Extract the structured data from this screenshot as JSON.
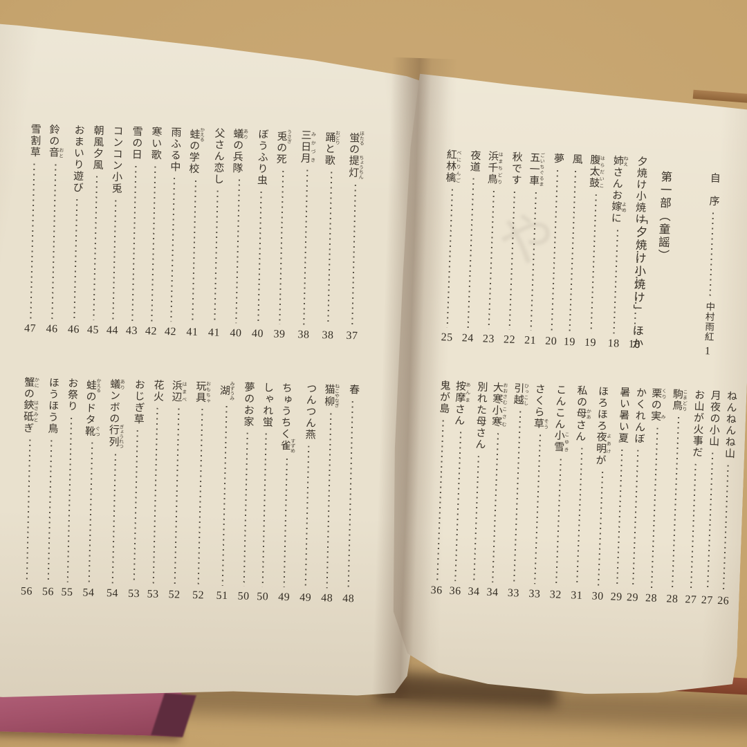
{
  "photo": {
    "subject": "open book spread showing table of contents",
    "colors": {
      "desk": "#c5a36d",
      "page_left": "#e9e1ce",
      "page_right": "#ece4d1",
      "ink": "#3b342b",
      "cover_pink": "#a4536b",
      "cover_rust": "#8a4732"
    }
  },
  "right_page": {
    "preface": {
      "title": "自　序",
      "author": "中村雨紅",
      "page": "1"
    },
    "part_heading": {
      "line1": "第一部（童謡）",
      "line2": "「夕焼け小焼け」　ほか"
    },
    "toc_upper": [
      {
        "s": [
          {
            "t": "夕焼け小焼け"
          }
        ],
        "p": "18"
      },
      {
        "s": [
          {
            "t": "姉",
            "r": "ねえ"
          },
          {
            "t": "さんお"
          },
          {
            "t": "嫁",
            "r": "よめ"
          },
          {
            "t": "に"
          }
        ],
        "p": "18"
      },
      {
        "s": [
          {
            "t": "腹太鼓",
            "r": "はらだいこ"
          }
        ],
        "p": "19"
      },
      {
        "s": [
          {
            "t": "風"
          }
        ],
        "p": "19"
      },
      {
        "s": [
          {
            "t": "夢"
          }
        ],
        "p": "20"
      },
      {
        "s": [
          {
            "t": "五一車",
            "r": "ごいちぐるま"
          }
        ],
        "p": "21"
      },
      {
        "s": [
          {
            "t": "秋です"
          }
        ],
        "p": "22"
      },
      {
        "s": [
          {
            "t": "浜千鳥",
            "r": "はまちどり"
          }
        ],
        "p": "23"
      },
      {
        "s": [
          {
            "t": "夜道"
          }
        ],
        "p": "24"
      },
      {
        "s": [
          {
            "t": "紅林檎",
            "r": "べにりんご"
          }
        ],
        "p": "25"
      }
    ],
    "toc_lower": [
      {
        "s": [
          {
            "t": "ねんねんね山"
          }
        ],
        "p": "26"
      },
      {
        "s": [
          {
            "t": "月夜の小山"
          }
        ],
        "p": "27"
      },
      {
        "s": [
          {
            "t": "お山が火事だ"
          }
        ],
        "p": "27"
      },
      {
        "s": [
          {
            "t": "駒鳥",
            "r": "こまどり"
          }
        ],
        "p": "28"
      },
      {
        "s": [
          {
            "t": "栗",
            "r": "くり"
          },
          {
            "t": "の"
          },
          {
            "t": "実",
            "r": "み"
          }
        ],
        "p": "28"
      },
      {
        "s": [
          {
            "t": "かくれんぼ"
          }
        ],
        "p": "29"
      },
      {
        "s": [
          {
            "t": "暑い暑い夏"
          }
        ],
        "p": "29"
      },
      {
        "s": [
          {
            "t": "ほろほろ"
          },
          {
            "t": "夜明",
            "r": "よあけ"
          },
          {
            "t": "が"
          }
        ],
        "p": "30"
      },
      {
        "s": [
          {
            "t": "私の"
          },
          {
            "t": "母",
            "r": "かあ"
          },
          {
            "t": "さん"
          }
        ],
        "p": "31"
      },
      {
        "s": [
          {
            "t": "こんこん"
          },
          {
            "t": "小雪",
            "r": "こゆき"
          }
        ],
        "p": "32"
      },
      {
        "s": [
          {
            "t": "さくら"
          },
          {
            "t": "草",
            "r": "そう"
          }
        ],
        "p": "33"
      },
      {
        "s": [
          {
            "t": "引越",
            "r": "ひっこし"
          }
        ],
        "p": "33"
      },
      {
        "s": [
          {
            "t": "大寒",
            "r": "おおさむ"
          },
          {
            "t": "小寒",
            "r": "こさむ"
          }
        ],
        "p": "34"
      },
      {
        "s": [
          {
            "t": "別れた母さん"
          }
        ],
        "p": "34"
      },
      {
        "s": [
          {
            "t": "按摩",
            "r": "あんま"
          },
          {
            "t": "さん"
          }
        ],
        "p": "36"
      },
      {
        "s": [
          {
            "t": "鬼が島"
          }
        ],
        "p": "36"
      }
    ]
  },
  "left_page": {
    "toc_upper": [
      {
        "s": [
          {
            "t": "蛍",
            "r": "ほたる"
          },
          {
            "t": "の"
          },
          {
            "t": "提灯",
            "r": "ちょうちん"
          }
        ],
        "p": "37"
      },
      {
        "s": [
          {
            "t": "踊",
            "r": "おどり"
          },
          {
            "t": "と歌"
          }
        ],
        "p": "38"
      },
      {
        "s": [
          {
            "t": "三日月",
            "r": "みかづき"
          }
        ],
        "p": "38"
      },
      {
        "s": [
          {
            "t": "兎",
            "r": "うさぎ"
          },
          {
            "t": "の死"
          }
        ],
        "p": "39"
      },
      {
        "s": [
          {
            "t": "ぼうふり虫"
          }
        ],
        "p": "40"
      },
      {
        "s": [
          {
            "t": "蟻",
            "r": "あり"
          },
          {
            "t": "の兵隊"
          }
        ],
        "p": "40"
      },
      {
        "s": [
          {
            "t": "父さん恋し"
          }
        ],
        "p": "41"
      },
      {
        "s": [
          {
            "t": "蛙",
            "r": "かえる"
          },
          {
            "t": "の学校"
          }
        ],
        "p": "41"
      },
      {
        "s": [
          {
            "t": "雨ふる中"
          }
        ],
        "p": "42"
      },
      {
        "s": [
          {
            "t": "寒い歌"
          }
        ],
        "p": "42"
      },
      {
        "s": [
          {
            "t": "雪の日"
          }
        ],
        "p": "43"
      },
      {
        "s": [
          {
            "t": "コンコン小兎"
          }
        ],
        "p": "44"
      },
      {
        "s": [
          {
            "t": "朝風夕風"
          }
        ],
        "p": "45"
      },
      {
        "s": [
          {
            "t": "おまいり遊び"
          }
        ],
        "p": "46"
      },
      {
        "s": [
          {
            "t": "鈴の"
          },
          {
            "t": "音",
            "r": "おと"
          }
        ],
        "p": "46"
      },
      {
        "s": [
          {
            "t": "雪割草"
          }
        ],
        "p": "47"
      }
    ],
    "toc_lower": [
      {
        "s": [
          {
            "t": "春"
          }
        ],
        "p": "48"
      },
      {
        "s": [
          {
            "t": "猫柳",
            "r": "ねこやなぎ"
          }
        ],
        "p": "48"
      },
      {
        "s": [
          {
            "t": "つんつん燕"
          }
        ],
        "p": "49"
      },
      {
        "s": [
          {
            "t": "ちゅうちく"
          },
          {
            "t": "雀",
            "r": "すずめ"
          }
        ],
        "p": "49"
      },
      {
        "s": [
          {
            "t": "しゃれ蛍"
          }
        ],
        "p": "50"
      },
      {
        "s": [
          {
            "t": "夢のお家"
          }
        ],
        "p": "50"
      },
      {
        "s": [
          {
            "t": "湖",
            "r": "みずうみ"
          }
        ],
        "p": "51"
      },
      {
        "s": [
          {
            "t": "玩具",
            "r": "おもちゃ"
          }
        ],
        "p": "52"
      },
      {
        "s": [
          {
            "t": "浜辺",
            "r": "はまべ"
          }
        ],
        "p": "52"
      },
      {
        "s": [
          {
            "t": "花火"
          }
        ],
        "p": "53"
      },
      {
        "s": [
          {
            "t": "おじぎ草"
          }
        ],
        "p": "53"
      },
      {
        "s": [
          {
            "t": "蟻",
            "r": "あり"
          },
          {
            "t": "ンボの"
          },
          {
            "t": "行列",
            "r": "ぎょうれつ"
          }
        ],
        "p": "54"
      },
      {
        "s": [
          {
            "t": "蛙",
            "r": "かえる"
          },
          {
            "t": "のドタ"
          },
          {
            "t": "靴",
            "r": "ぐつ"
          }
        ],
        "p": "54"
      },
      {
        "s": [
          {
            "t": "お祭り"
          }
        ],
        "p": "55"
      },
      {
        "s": [
          {
            "t": "ほうほう鳥"
          }
        ],
        "p": "56"
      },
      {
        "s": [
          {
            "t": "蟹",
            "r": "かに"
          },
          {
            "t": "の"
          },
          {
            "t": "鋏砥",
            "r": "はさみと"
          },
          {
            "t": "ぎ"
          }
        ],
        "p": "56"
      }
    ]
  }
}
